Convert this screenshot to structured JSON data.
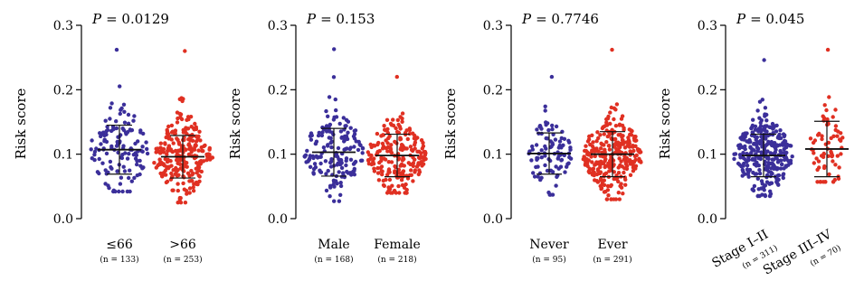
{
  "chart_data": [
    {
      "type": "scatter",
      "subtype": "dot-plot-mean-sd",
      "ylabel": "Risk score",
      "ylim": [
        0,
        0.3
      ],
      "yticks": [
        "0.0",
        "0.1",
        "0.2",
        "0.3"
      ],
      "p_label": "P",
      "p_value": "= 0.0129",
      "categories": [
        {
          "label": "≤66",
          "n": "(n = 133)",
          "count": 133,
          "color": "#3b2f9a",
          "mean": 0.107,
          "sd": 0.038,
          "min": 0.042,
          "max": 0.262
        },
        {
          "label": ">66",
          "n": "(n = 253)",
          "count": 253,
          "color": "#e03022",
          "mean": 0.096,
          "sd": 0.033,
          "min": 0.025,
          "max": 0.26
        }
      ]
    },
    {
      "type": "scatter",
      "subtype": "dot-plot-mean-sd",
      "ylabel": "Risk score",
      "ylim": [
        0,
        0.3
      ],
      "yticks": [
        "0.0",
        "0.1",
        "0.2",
        "0.3"
      ],
      "p_label": "P",
      "p_value": "= 0.153",
      "categories": [
        {
          "label": "Male",
          "n": "(n = 168)",
          "count": 168,
          "color": "#3b2f9a",
          "mean": 0.103,
          "sd": 0.037,
          "min": 0.027,
          "max": 0.263
        },
        {
          "label": "Female",
          "n": "(n = 218)",
          "count": 218,
          "color": "#e03022",
          "mean": 0.098,
          "sd": 0.033,
          "min": 0.04,
          "max": 0.22
        }
      ]
    },
    {
      "type": "scatter",
      "subtype": "dot-plot-mean-sd",
      "ylabel": "Risk score",
      "ylim": [
        0,
        0.3
      ],
      "yticks": [
        "0.0",
        "0.1",
        "0.2",
        "0.3"
      ],
      "p_label": "P",
      "p_value": "= 0.7746",
      "categories": [
        {
          "label": "Never",
          "n": "(n = 95)",
          "count": 95,
          "color": "#3b2f9a",
          "mean": 0.101,
          "sd": 0.032,
          "min": 0.037,
          "max": 0.22
        },
        {
          "label": "Ever",
          "n": "(n = 291)",
          "count": 291,
          "color": "#e03022",
          "mean": 0.1,
          "sd": 0.035,
          "min": 0.03,
          "max": 0.262
        }
      ]
    },
    {
      "type": "scatter",
      "subtype": "dot-plot-mean-sd",
      "ylabel": "Risk score",
      "ylim": [
        0,
        0.3
      ],
      "yticks": [
        "0.0",
        "0.1",
        "0.2",
        "0.3"
      ],
      "p_label": "P",
      "p_value": "= 0.045",
      "rotate_labels": true,
      "categories": [
        {
          "label": "Stage I–II",
          "n": "(n = 311)",
          "count": 311,
          "color": "#3b2f9a",
          "mean": 0.098,
          "sd": 0.033,
          "min": 0.035,
          "max": 0.246
        },
        {
          "label": "Stage III–IV",
          "n": "(n = 70)",
          "count": 70,
          "color": "#e03022",
          "mean": 0.108,
          "sd": 0.043,
          "min": 0.057,
          "max": 0.262
        }
      ]
    }
  ]
}
